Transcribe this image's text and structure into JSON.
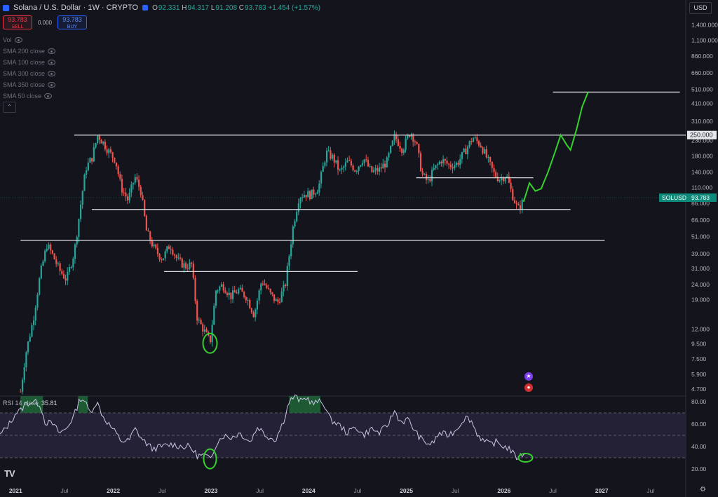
{
  "header": {
    "symbol": "Solana / U.S. Dollar · 1W · CRYPTO",
    "ohlc": [
      {
        "k": "O",
        "v": "92.331"
      },
      {
        "k": "H",
        "v": "94.317"
      },
      {
        "k": "L",
        "v": "91.208"
      },
      {
        "k": "C",
        "v": "93.783"
      }
    ],
    "change": "+1.454 (+1.57%)"
  },
  "trade": {
    "sell_price": "93.783",
    "sell_label": "SELL",
    "spread": "0.000",
    "buy_price": "93.783",
    "buy_label": "BUY"
  },
  "indicators": [
    "Vol",
    "SMA 200 close",
    "SMA 100 close",
    "SMA 300 close",
    "SMA 350 close",
    "SMA 50 close"
  ],
  "currency": "USD",
  "rsi": {
    "label": "RSI 14 close",
    "value": "35.81"
  },
  "price_tag": {
    "symbol": "SOLUSD",
    "value": "93.783"
  },
  "level_tag": "250.000",
  "colors": {
    "background": "#14151c",
    "up": "#26a69a",
    "down": "#ef5350",
    "projection": "#35d12c",
    "level_lines": "#d9dbe0",
    "rsi_line": "#c9c7e6",
    "rsi_band": "#2a2540"
  },
  "chart_data": [
    {
      "type": "candlestick",
      "scale": "log",
      "ylim": [
        4.2,
        1700
      ],
      "y_ticks": [
        "1,400.000",
        "1,100.000",
        "860.000",
        "660.000",
        "510.000",
        "410.000",
        "310.000",
        "230.000",
        "180.000",
        "140.000",
        "110.000",
        "86.000",
        "66.000",
        "51.000",
        "39.000",
        "31.000",
        "24.000",
        "19.000",
        "12.000",
        "9.500",
        "7.500",
        "5.900",
        "4.700"
      ],
      "x_ticks": [
        "2021",
        "Jul",
        "2022",
        "Jul",
        "2023",
        "Jul",
        "2024",
        "Jul",
        "2025",
        "Jul",
        "2026",
        "Jul",
        "2027",
        "Jul"
      ],
      "close_path": [
        {
          "t": 2021.05,
          "v": 4.5
        },
        {
          "t": 2021.1,
          "v": 8
        },
        {
          "t": 2021.18,
          "v": 14
        },
        {
          "t": 2021.25,
          "v": 28
        },
        {
          "t": 2021.32,
          "v": 45
        },
        {
          "t": 2021.38,
          "v": 38
        },
        {
          "t": 2021.45,
          "v": 30
        },
        {
          "t": 2021.52,
          "v": 26
        },
        {
          "t": 2021.6,
          "v": 40
        },
        {
          "t": 2021.68,
          "v": 100
        },
        {
          "t": 2021.72,
          "v": 150
        },
        {
          "t": 2021.78,
          "v": 175
        },
        {
          "t": 2021.84,
          "v": 250
        },
        {
          "t": 2021.9,
          "v": 220
        },
        {
          "t": 2021.96,
          "v": 190
        },
        {
          "t": 2022.02,
          "v": 170
        },
        {
          "t": 2022.08,
          "v": 110
        },
        {
          "t": 2022.15,
          "v": 90
        },
        {
          "t": 2022.22,
          "v": 130
        },
        {
          "t": 2022.28,
          "v": 105
        },
        {
          "t": 2022.34,
          "v": 55
        },
        {
          "t": 2022.42,
          "v": 42
        },
        {
          "t": 2022.5,
          "v": 36
        },
        {
          "t": 2022.58,
          "v": 45
        },
        {
          "t": 2022.66,
          "v": 35
        },
        {
          "t": 2022.74,
          "v": 32
        },
        {
          "t": 2022.8,
          "v": 33
        },
        {
          "t": 2022.86,
          "v": 14
        },
        {
          "t": 2022.92,
          "v": 12
        },
        {
          "t": 2022.99,
          "v": 9.8
        },
        {
          "t": 2023.05,
          "v": 22
        },
        {
          "t": 2023.12,
          "v": 24
        },
        {
          "t": 2023.2,
          "v": 20
        },
        {
          "t": 2023.28,
          "v": 22
        },
        {
          "t": 2023.36,
          "v": 20
        },
        {
          "t": 2023.44,
          "v": 15
        },
        {
          "t": 2023.52,
          "v": 26
        },
        {
          "t": 2023.6,
          "v": 21
        },
        {
          "t": 2023.68,
          "v": 18
        },
        {
          "t": 2023.76,
          "v": 24
        },
        {
          "t": 2023.84,
          "v": 60
        },
        {
          "t": 2023.9,
          "v": 95
        },
        {
          "t": 2023.96,
          "v": 100
        },
        {
          "t": 2024.02,
          "v": 98
        },
        {
          "t": 2024.1,
          "v": 110
        },
        {
          "t": 2024.18,
          "v": 190
        },
        {
          "t": 2024.25,
          "v": 175
        },
        {
          "t": 2024.32,
          "v": 140
        },
        {
          "t": 2024.4,
          "v": 165
        },
        {
          "t": 2024.48,
          "v": 145
        },
        {
          "t": 2024.56,
          "v": 175
        },
        {
          "t": 2024.64,
          "v": 140
        },
        {
          "t": 2024.72,
          "v": 145
        },
        {
          "t": 2024.8,
          "v": 165
        },
        {
          "t": 2024.88,
          "v": 245
        },
        {
          "t": 2024.96,
          "v": 200
        },
        {
          "t": 2025.04,
          "v": 265
        },
        {
          "t": 2025.1,
          "v": 220
        },
        {
          "t": 2025.16,
          "v": 135
        },
        {
          "t": 2025.22,
          "v": 120
        },
        {
          "t": 2025.28,
          "v": 145
        },
        {
          "t": 2025.36,
          "v": 170
        },
        {
          "t": 2025.44,
          "v": 155
        },
        {
          "t": 2025.52,
          "v": 160
        },
        {
          "t": 2025.6,
          "v": 195
        },
        {
          "t": 2025.68,
          "v": 240
        },
        {
          "t": 2025.76,
          "v": 215
        },
        {
          "t": 2025.84,
          "v": 165
        },
        {
          "t": 2025.9,
          "v": 135
        },
        {
          "t": 2025.96,
          "v": 125
        },
        {
          "t": 2026.02,
          "v": 135
        },
        {
          "t": 2026.08,
          "v": 100
        },
        {
          "t": 2026.14,
          "v": 78
        },
        {
          "t": 2026.18,
          "v": 86
        },
        {
          "t": 2026.22,
          "v": 93.783
        }
      ],
      "rsi_values": [
        {
          "t": 2020.84,
          "v": 50
        },
        {
          "t": 2020.95,
          "v": 62
        },
        {
          "t": 2021.0,
          "v": 70
        },
        {
          "t": 2021.05,
          "v": 72
        },
        {
          "t": 2021.1,
          "v": 78
        },
        {
          "t": 2021.18,
          "v": 80
        },
        {
          "t": 2021.25,
          "v": 78
        },
        {
          "t": 2021.3,
          "v": 62
        },
        {
          "t": 2021.38,
          "v": 60
        },
        {
          "t": 2021.45,
          "v": 52
        },
        {
          "t": 2021.52,
          "v": 56
        },
        {
          "t": 2021.6,
          "v": 68
        },
        {
          "t": 2021.66,
          "v": 83
        },
        {
          "t": 2021.7,
          "v": 82
        },
        {
          "t": 2021.76,
          "v": 70
        },
        {
          "t": 2021.83,
          "v": 80
        },
        {
          "t": 2021.9,
          "v": 66
        },
        {
          "t": 2022.0,
          "v": 55
        },
        {
          "t": 2022.08,
          "v": 45
        },
        {
          "t": 2022.16,
          "v": 45
        },
        {
          "t": 2022.22,
          "v": 56
        },
        {
          "t": 2022.3,
          "v": 46
        },
        {
          "t": 2022.4,
          "v": 38
        },
        {
          "t": 2022.5,
          "v": 40
        },
        {
          "t": 2022.6,
          "v": 42
        },
        {
          "t": 2022.7,
          "v": 40
        },
        {
          "t": 2022.78,
          "v": 40
        },
        {
          "t": 2022.86,
          "v": 32
        },
        {
          "t": 2022.94,
          "v": 32
        },
        {
          "t": 2022.99,
          "v": 28
        },
        {
          "t": 2023.05,
          "v": 42
        },
        {
          "t": 2023.12,
          "v": 50
        },
        {
          "t": 2023.2,
          "v": 48
        },
        {
          "t": 2023.3,
          "v": 52
        },
        {
          "t": 2023.4,
          "v": 44
        },
        {
          "t": 2023.48,
          "v": 58
        },
        {
          "t": 2023.56,
          "v": 50
        },
        {
          "t": 2023.66,
          "v": 46
        },
        {
          "t": 2023.74,
          "v": 62
        },
        {
          "t": 2023.8,
          "v": 80
        },
        {
          "t": 2023.86,
          "v": 85
        },
        {
          "t": 2023.92,
          "v": 80
        },
        {
          "t": 2023.98,
          "v": 84
        },
        {
          "t": 2024.04,
          "v": 78
        },
        {
          "t": 2024.1,
          "v": 80
        },
        {
          "t": 2024.16,
          "v": 78
        },
        {
          "t": 2024.22,
          "v": 64
        },
        {
          "t": 2024.3,
          "v": 60
        },
        {
          "t": 2024.4,
          "v": 52
        },
        {
          "t": 2024.48,
          "v": 58
        },
        {
          "t": 2024.56,
          "v": 50
        },
        {
          "t": 2024.64,
          "v": 56
        },
        {
          "t": 2024.72,
          "v": 52
        },
        {
          "t": 2024.8,
          "v": 58
        },
        {
          "t": 2024.88,
          "v": 72
        },
        {
          "t": 2024.94,
          "v": 62
        },
        {
          "t": 2025.02,
          "v": 64
        },
        {
          "t": 2025.1,
          "v": 52
        },
        {
          "t": 2025.18,
          "v": 44
        },
        {
          "t": 2025.26,
          "v": 42
        },
        {
          "t": 2025.34,
          "v": 52
        },
        {
          "t": 2025.42,
          "v": 50
        },
        {
          "t": 2025.5,
          "v": 54
        },
        {
          "t": 2025.6,
          "v": 66
        },
        {
          "t": 2025.66,
          "v": 64
        },
        {
          "t": 2025.72,
          "v": 52
        },
        {
          "t": 2025.8,
          "v": 44
        },
        {
          "t": 2025.86,
          "v": 42
        },
        {
          "t": 2025.92,
          "v": 44
        },
        {
          "t": 2026.0,
          "v": 40
        },
        {
          "t": 2026.06,
          "v": 38
        },
        {
          "t": 2026.12,
          "v": 30
        },
        {
          "t": 2026.18,
          "v": 32
        },
        {
          "t": 2026.22,
          "v": 35.81
        }
      ]
    }
  ]
}
